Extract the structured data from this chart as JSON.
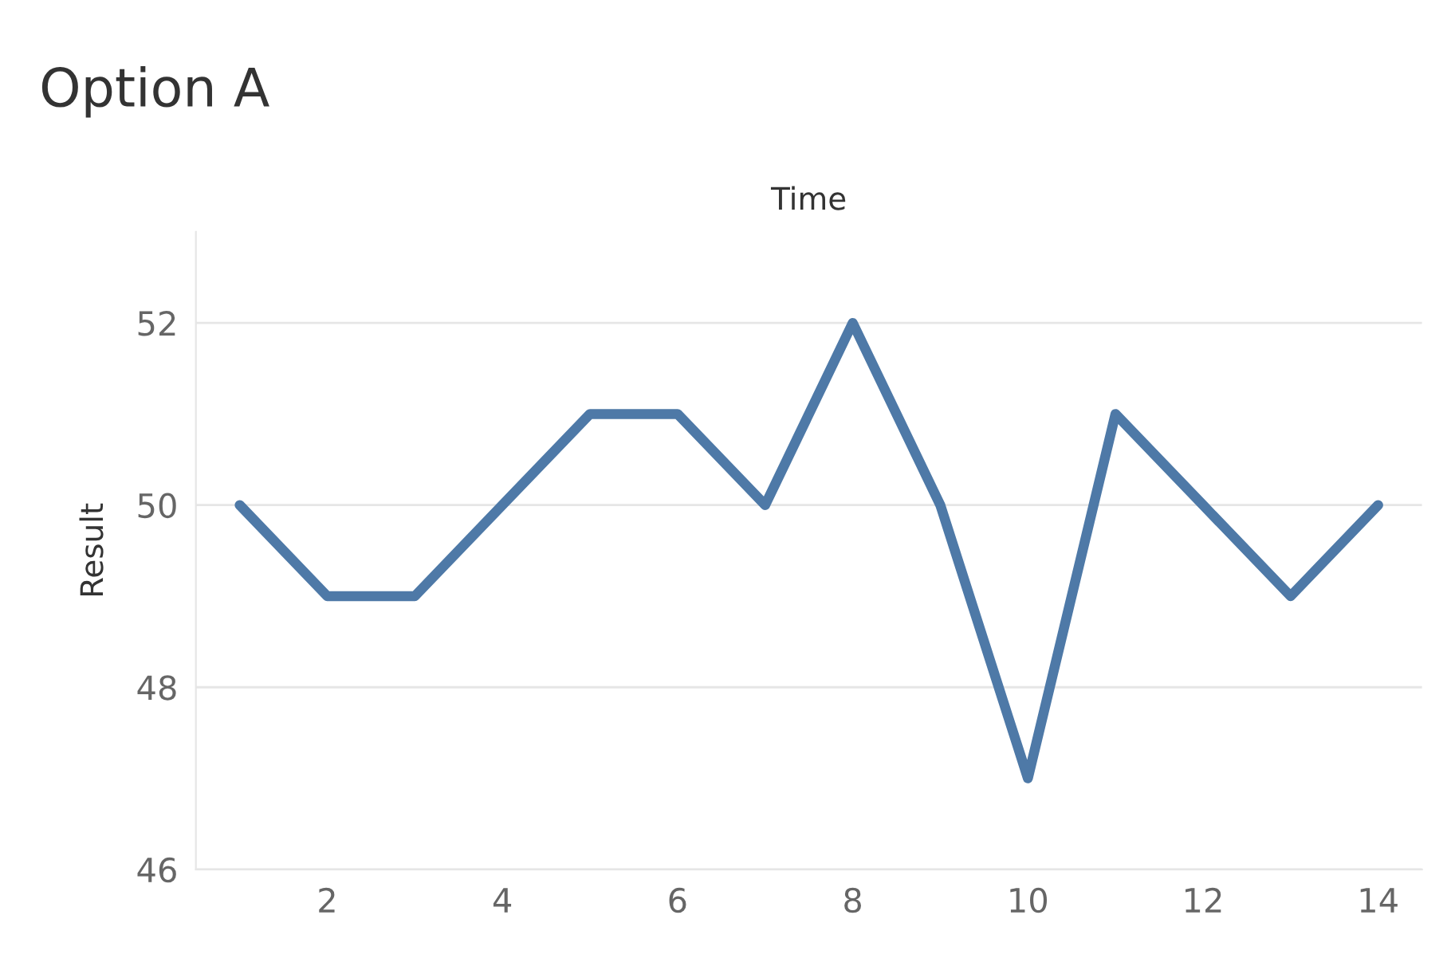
{
  "chart_data": {
    "type": "line",
    "title": "Option A",
    "xlabel": "Time",
    "ylabel": "Result",
    "x": [
      1,
      2,
      3,
      4,
      5,
      6,
      7,
      8,
      9,
      10,
      11,
      12,
      13,
      14
    ],
    "series": [
      {
        "color": "#4e79a7",
        "values": [
          50,
          49,
          49,
          50,
          51,
          51,
          50,
          52,
          50,
          47,
          51,
          50,
          49,
          50
        ]
      }
    ],
    "xlim": [
      0.5,
      14.5
    ],
    "xticks": [
      2,
      4,
      6,
      8,
      10,
      12,
      14
    ],
    "ylim": [
      46,
      53
    ],
    "yticks": [
      46,
      48,
      50,
      52
    ],
    "grid": "y",
    "marker": "none",
    "line_style": "solid",
    "legend": false
  }
}
